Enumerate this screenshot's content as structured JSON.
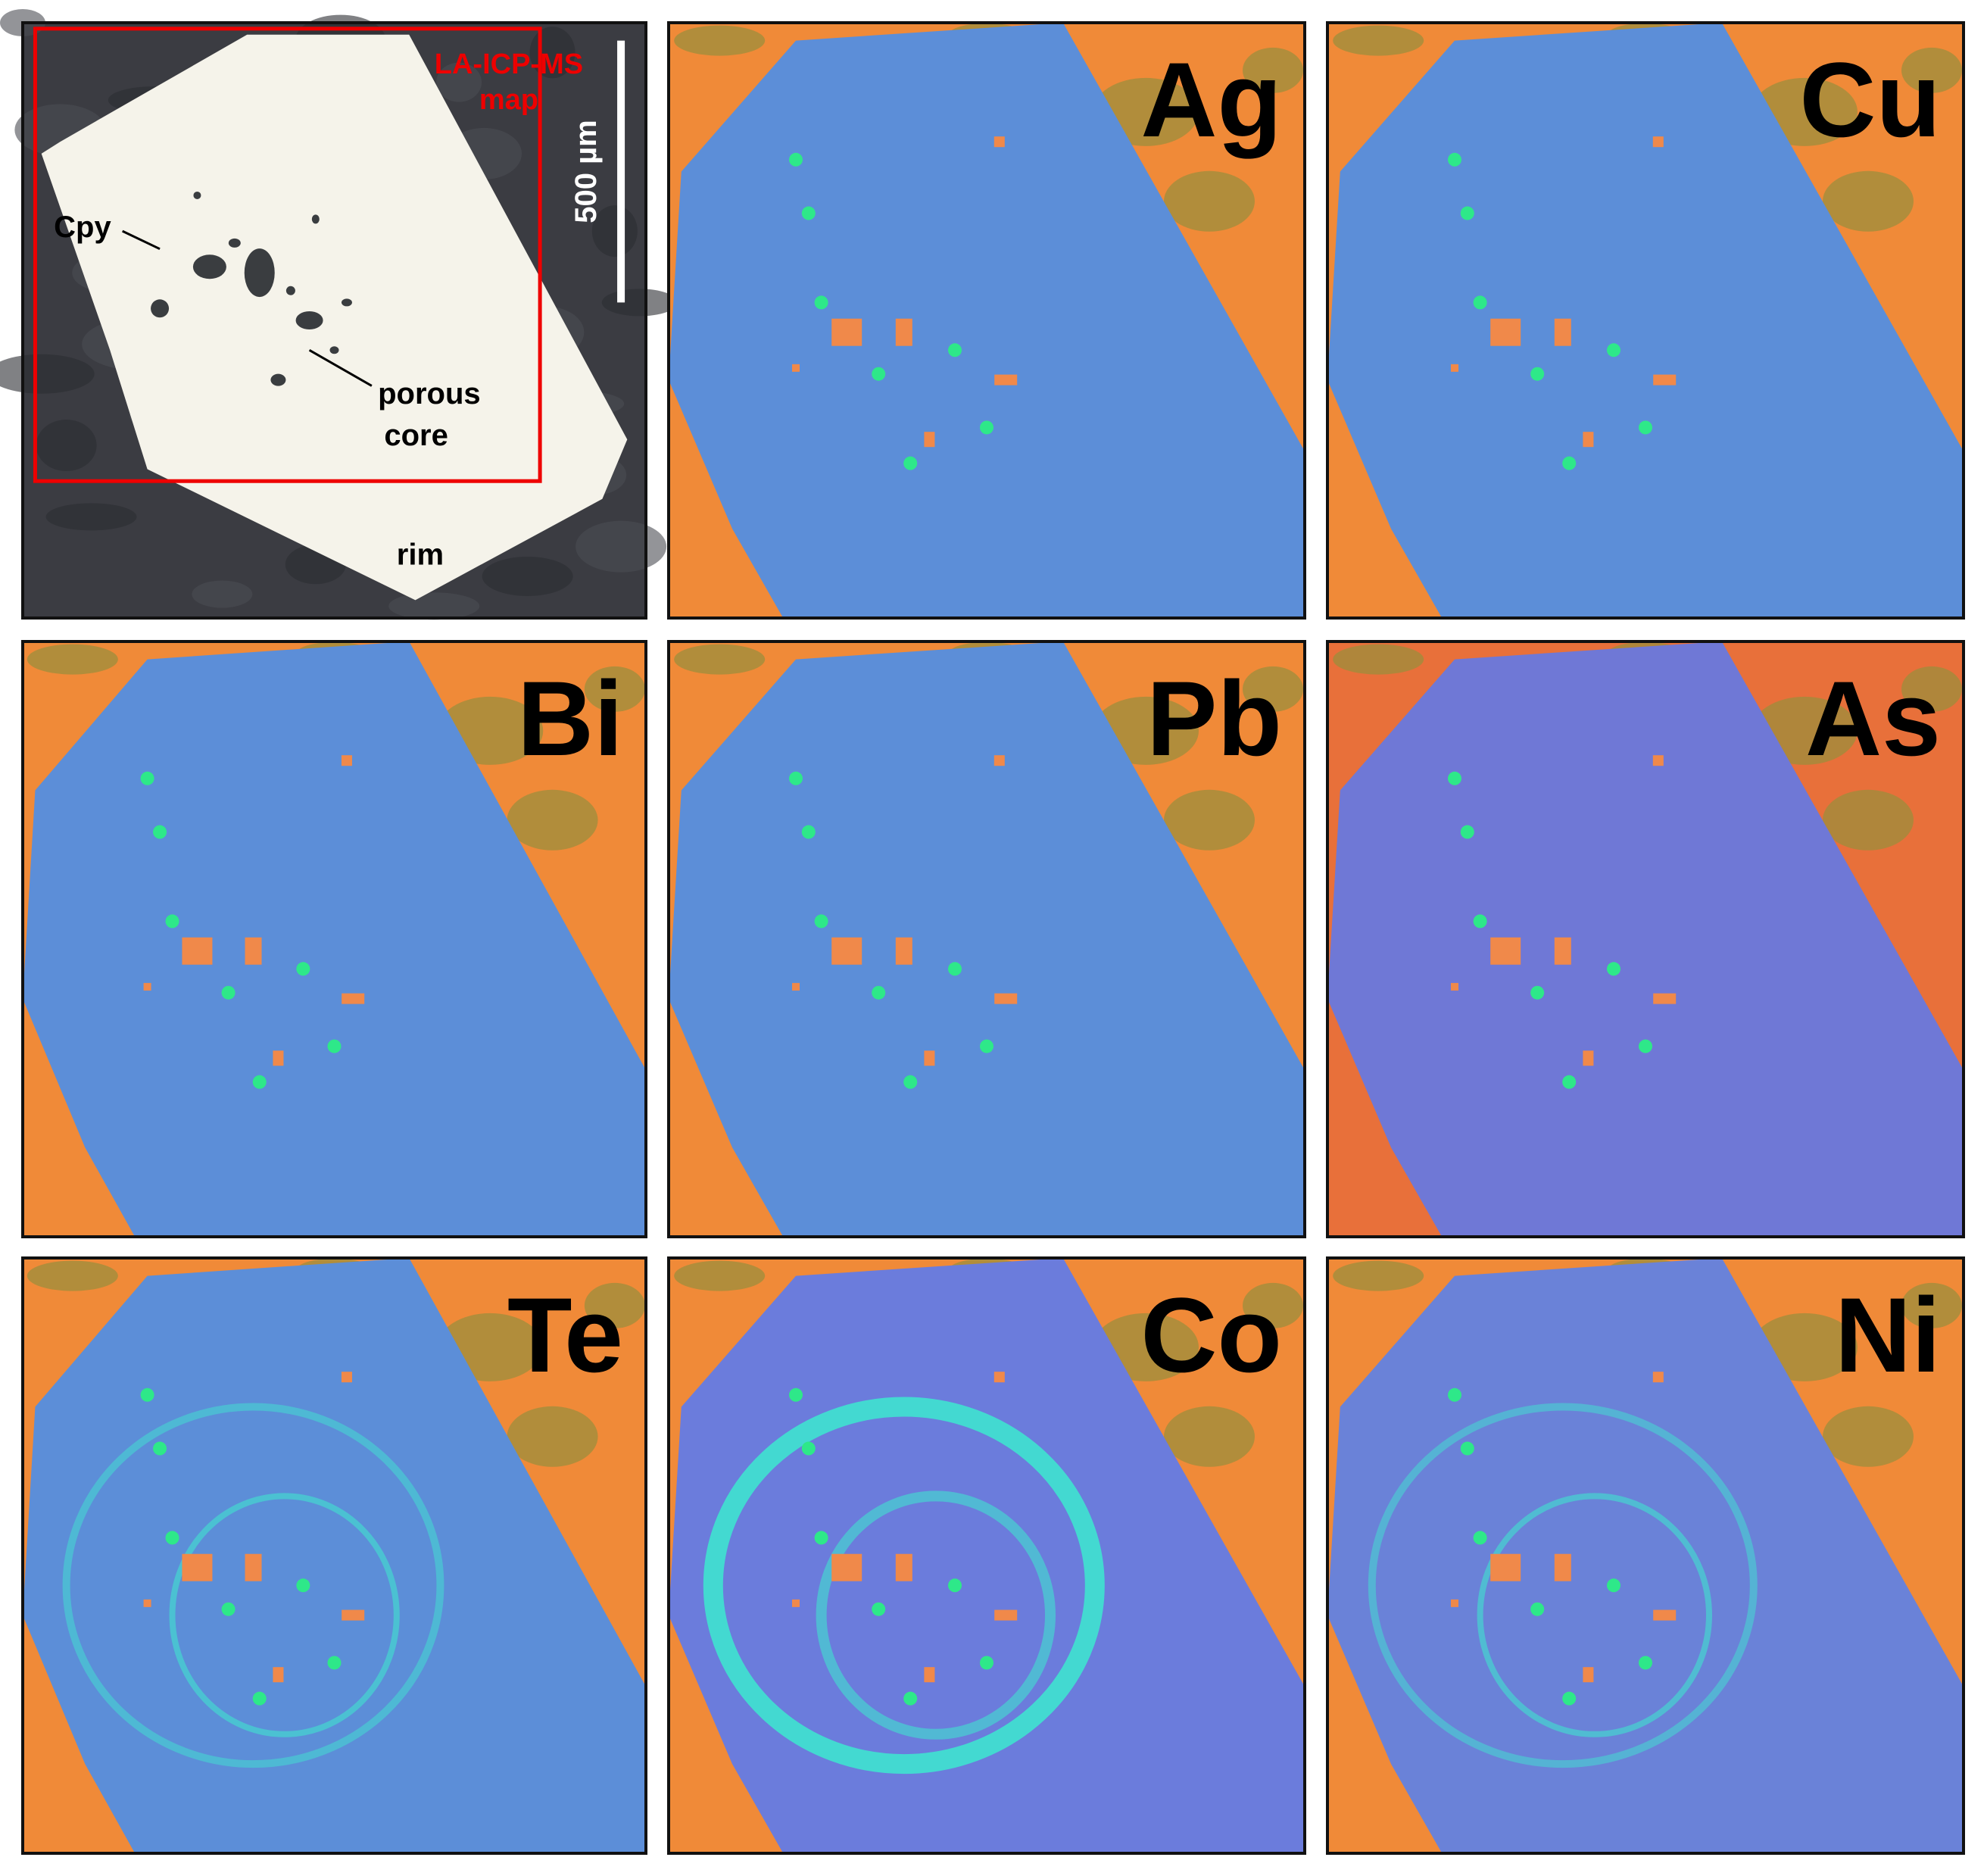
{
  "photo": {
    "map_label": [
      "LA-ICP-MS",
      "map"
    ],
    "scale": "500 µm",
    "mineral": "Cpy",
    "core_label": [
      "porous",
      "core"
    ],
    "rim_label": "rim"
  },
  "elements": [
    "Ag",
    "Cu",
    "Bi",
    "Pb",
    "As",
    "Te",
    "Co",
    "Ni"
  ]
}
